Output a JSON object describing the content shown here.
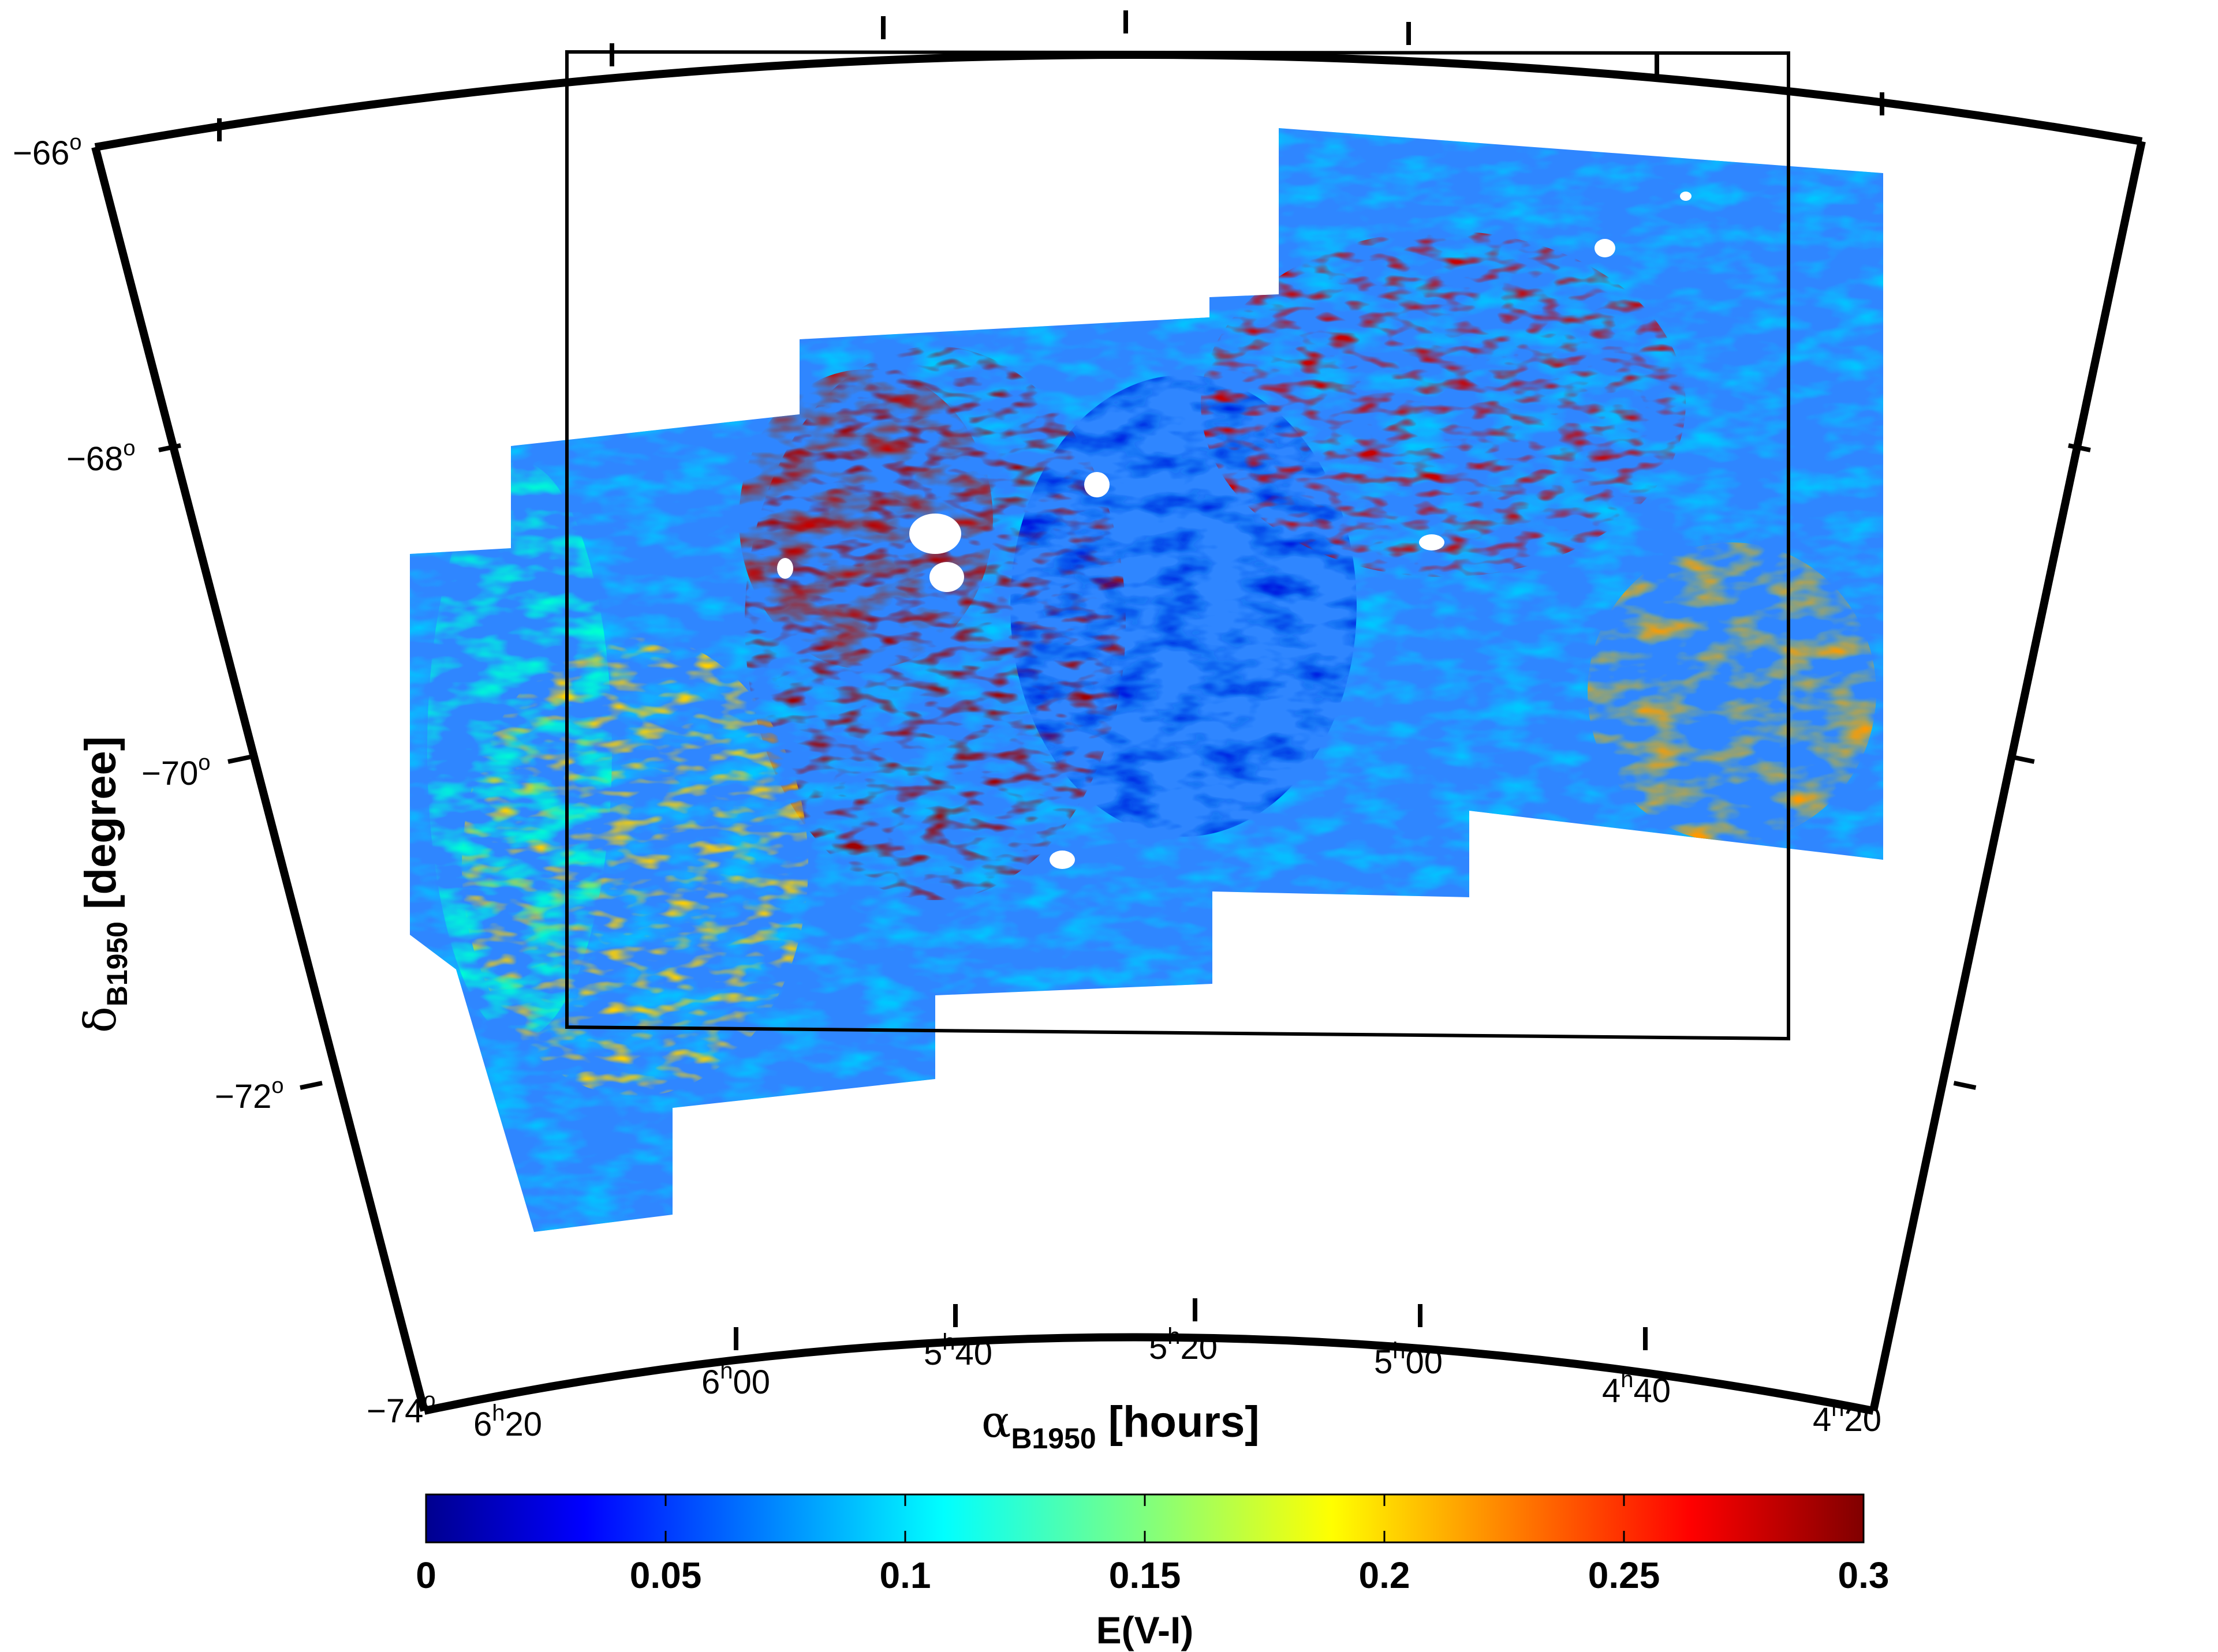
{
  "map": {
    "x_axis": {
      "label_symbol": "α",
      "label_sub": "B1950",
      "label_unit": " [hours]",
      "ticks": [
        {
          "h": "6",
          "m": "20"
        },
        {
          "h": "6",
          "m": "00"
        },
        {
          "h": "5",
          "m": "40"
        },
        {
          "h": "5",
          "m": "20"
        },
        {
          "h": "5",
          "m": "00"
        },
        {
          "h": "4",
          "m": "40"
        },
        {
          "h": "4",
          "m": "20"
        }
      ]
    },
    "y_axis": {
      "label_symbol": "δ",
      "label_sub": "B1950",
      "label_unit": " [degree]",
      "ticks": [
        "−66",
        "−68",
        "−70",
        "−72",
        "−74"
      ],
      "degree_mark": "o"
    },
    "hour_mark": "h"
  },
  "colorbar": {
    "label": "E(V-I)",
    "range": [
      0,
      0.3
    ],
    "ticks": [
      "0",
      "0.05",
      "0.1",
      "0.15",
      "0.2",
      "0.25",
      "0.3"
    ],
    "colormap": "jet"
  },
  "colors": {
    "low": "#00008f",
    "mid": "#7fff7f",
    "high": "#800000",
    "frame": "#000000"
  }
}
